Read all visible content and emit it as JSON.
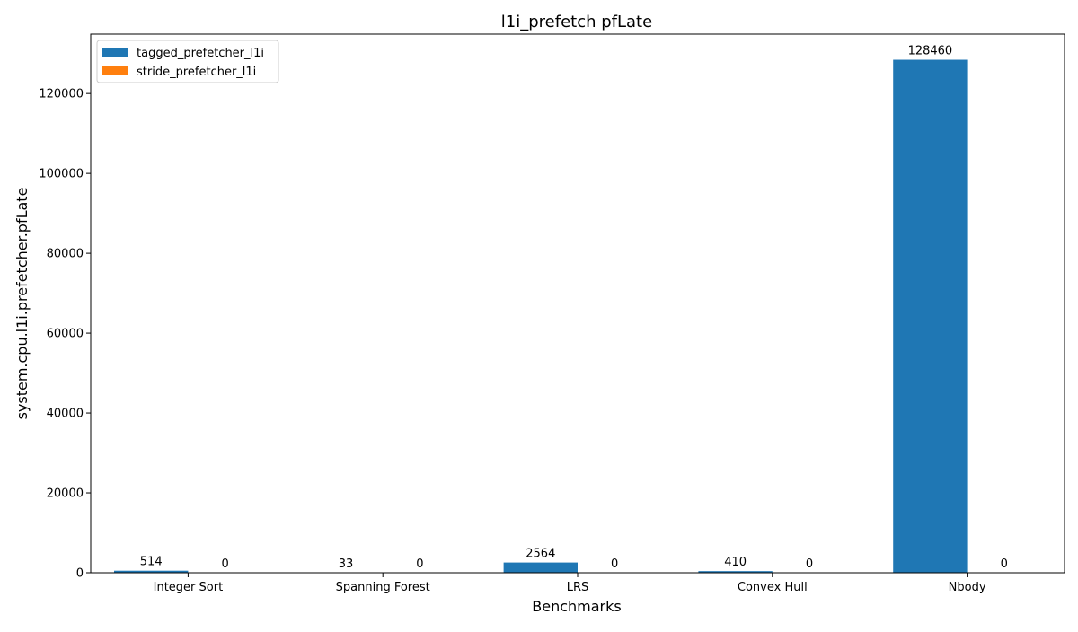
{
  "chart_data": {
    "type": "bar",
    "title": "l1i_prefetch pfLate",
    "xlabel": "Benchmarks",
    "ylabel": "system.cpu.l1i.prefetcher.pfLate",
    "categories": [
      "Integer Sort",
      "Spanning Forest",
      "LRS",
      "Convex Hull",
      "Nbody"
    ],
    "series": [
      {
        "name": "tagged_prefetcher_l1i",
        "color": "#1f77b4",
        "values": [
          514,
          33,
          2564,
          410,
          128460
        ]
      },
      {
        "name": "stride_prefetcher_l1i",
        "color": "#ff7f0e",
        "values": [
          0,
          0,
          0,
          0,
          0
        ]
      }
    ],
    "ylim": [
      0,
      134873
    ],
    "yticks": [
      0,
      20000,
      40000,
      60000,
      80000,
      100000,
      120000
    ],
    "legend_position": "top-left",
    "grid": false
  }
}
